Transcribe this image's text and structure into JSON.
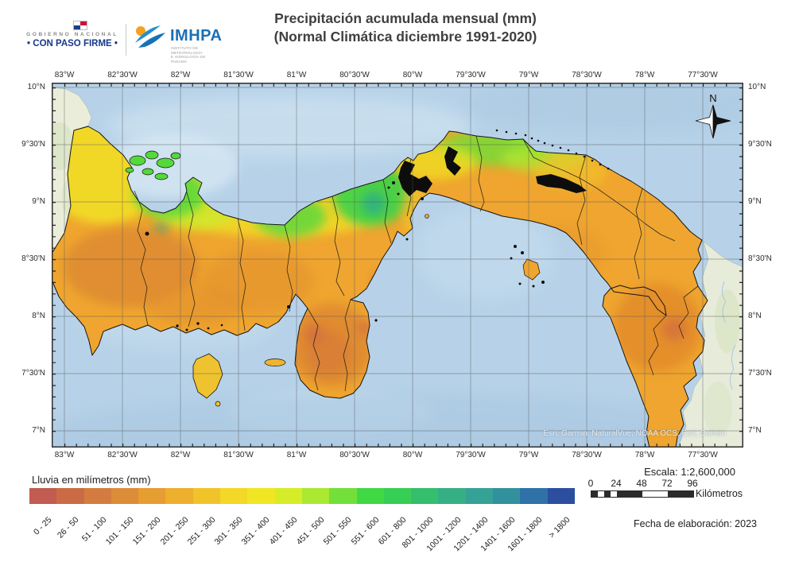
{
  "header": {
    "gov_logo": {
      "line1": "GOBIERNO NACIONAL",
      "line2": "• CON PASO FIRME •"
    },
    "imhpa": {
      "acronym": "IMHPA",
      "subtitle_line1": "INSTITUTO DE METEOROLOGÍA",
      "subtitle_line2": "E HIDROLOGÍA DE PANAMÁ"
    },
    "title_line1": "Precipitación acumulada mensual (mm)",
    "title_line2": "(Normal Climática diciembre 1991-2020)"
  },
  "map": {
    "lon_labels": [
      "83°W",
      "82°30'W",
      "82°W",
      "81°30'W",
      "81°W",
      "80°30'W",
      "80°W",
      "79°30'W",
      "79°W",
      "78°30'W",
      "78°W",
      "77°30'W"
    ],
    "lat_labels": [
      "10°N",
      "9°30'N",
      "9°N",
      "8°30'N",
      "8°N",
      "7°30'N",
      "7°N"
    ],
    "north_label": "N",
    "attribution": "Esri, Garmin, NaturalVue; NOAA OCS, Esri, Garmin",
    "ocean_color": "#b7d2e8",
    "land_base_color": "#efa52f"
  },
  "legend": {
    "title": "Lluvia en milímetros (mm)",
    "classes": [
      {
        "label": "0 - 25",
        "color": "#c25b50"
      },
      {
        "label": "26 - 50",
        "color": "#cb6b46"
      },
      {
        "label": "51 - 100",
        "color": "#d47c3f"
      },
      {
        "label": "101 - 150",
        "color": "#dd8c38"
      },
      {
        "label": "151 - 200",
        "color": "#e69d32"
      },
      {
        "label": "201 - 250",
        "color": "#edaf2d"
      },
      {
        "label": "251 - 300",
        "color": "#f1c32b"
      },
      {
        "label": "301 - 350",
        "color": "#f4d727"
      },
      {
        "label": "351 - 400",
        "color": "#f0e623"
      },
      {
        "label": "401 - 450",
        "color": "#d4ed28"
      },
      {
        "label": "451 - 500",
        "color": "#aae831"
      },
      {
        "label": "501 - 550",
        "color": "#72e039"
      },
      {
        "label": "551 - 600",
        "color": "#40d844"
      },
      {
        "label": "601 - 800",
        "color": "#36ce55"
      },
      {
        "label": "801 - 1000",
        "color": "#34be6d"
      },
      {
        "label": "1001 - 1200",
        "color": "#35b085"
      },
      {
        "label": "1201 - 1400",
        "color": "#36a295"
      },
      {
        "label": "1401 - 1600",
        "color": "#33919e"
      },
      {
        "label": "1601 - 1800",
        "color": "#2e72a7"
      },
      {
        "label": "> 1800",
        "color": "#2c4e9f"
      }
    ]
  },
  "scale": {
    "text": "Escala: 1:2,600,000",
    "ticks": [
      "0",
      "24",
      "48",
      "72",
      "96"
    ],
    "unit": "Kilómetros"
  },
  "footer": {
    "date_label": "Fecha de elaboración: 2023"
  }
}
